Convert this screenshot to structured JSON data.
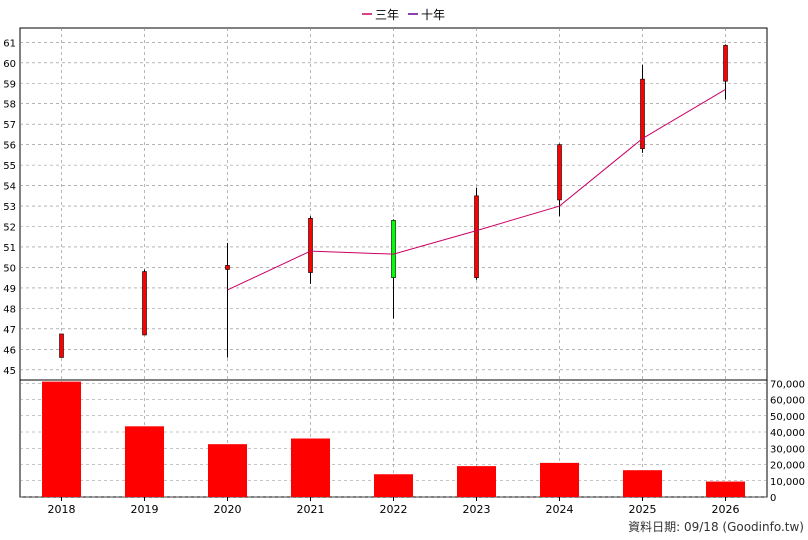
{
  "chart_data": {
    "type": "candlestick+bar",
    "legend": [
      {
        "name": "三年",
        "color": "#cc0066"
      },
      {
        "name": "十年",
        "color": "#660099"
      }
    ],
    "x": [
      "2018",
      "2019",
      "2020",
      "2021",
      "2022",
      "2023",
      "2024",
      "2025",
      "2026"
    ],
    "price_axis": {
      "ylim": [
        44.5,
        61.7
      ],
      "ticks": [
        45,
        46,
        47,
        48,
        49,
        50,
        51,
        52,
        53,
        54,
        55,
        56,
        57,
        58,
        59,
        60,
        61
      ]
    },
    "candles": [
      {
        "open": 46.75,
        "high": 46.75,
        "low": 45.6,
        "close": 45.6
      },
      {
        "open": 49.8,
        "high": 49.9,
        "low": 46.7,
        "close": 46.7
      },
      {
        "open": 50.1,
        "high": 51.2,
        "low": 45.6,
        "close": 49.9
      },
      {
        "open": 52.4,
        "high": 52.5,
        "low": 49.2,
        "close": 49.75
      },
      {
        "open": 49.5,
        "high": 52.35,
        "low": 47.5,
        "close": 52.3
      },
      {
        "open": 53.5,
        "high": 53.9,
        "low": 49.4,
        "close": 49.5
      },
      {
        "open": 56.0,
        "high": 56.05,
        "low": 52.5,
        "close": 53.3
      },
      {
        "open": 59.2,
        "high": 59.9,
        "low": 55.6,
        "close": 55.8
      },
      {
        "open": 60.85,
        "high": 60.9,
        "low": 58.2,
        "close": 59.1
      }
    ],
    "series": [
      {
        "name": "三年",
        "color": "#cc0066",
        "values": [
          null,
          null,
          48.9,
          50.8,
          50.65,
          51.8,
          53.0,
          56.3,
          58.7
        ]
      }
    ],
    "volume_axis": {
      "ylim": [
        0,
        72000
      ],
      "ticks": [
        "0",
        "10,000",
        "20,000",
        "30,000",
        "40,000",
        "50,000",
        "60,000",
        "70,000"
      ],
      "tick_values": [
        0,
        10000,
        20000,
        30000,
        40000,
        50000,
        60000,
        70000
      ]
    },
    "volume": [
      71000,
      43500,
      32500,
      36000,
      14000,
      19000,
      21000,
      16500,
      9500
    ],
    "colors": {
      "up": "#ff0000",
      "down": "#00ff00",
      "bar": "#ff0000",
      "grid": "#888888"
    }
  },
  "footer": "資料日期: 09/18  (Goodinfo.tw)"
}
